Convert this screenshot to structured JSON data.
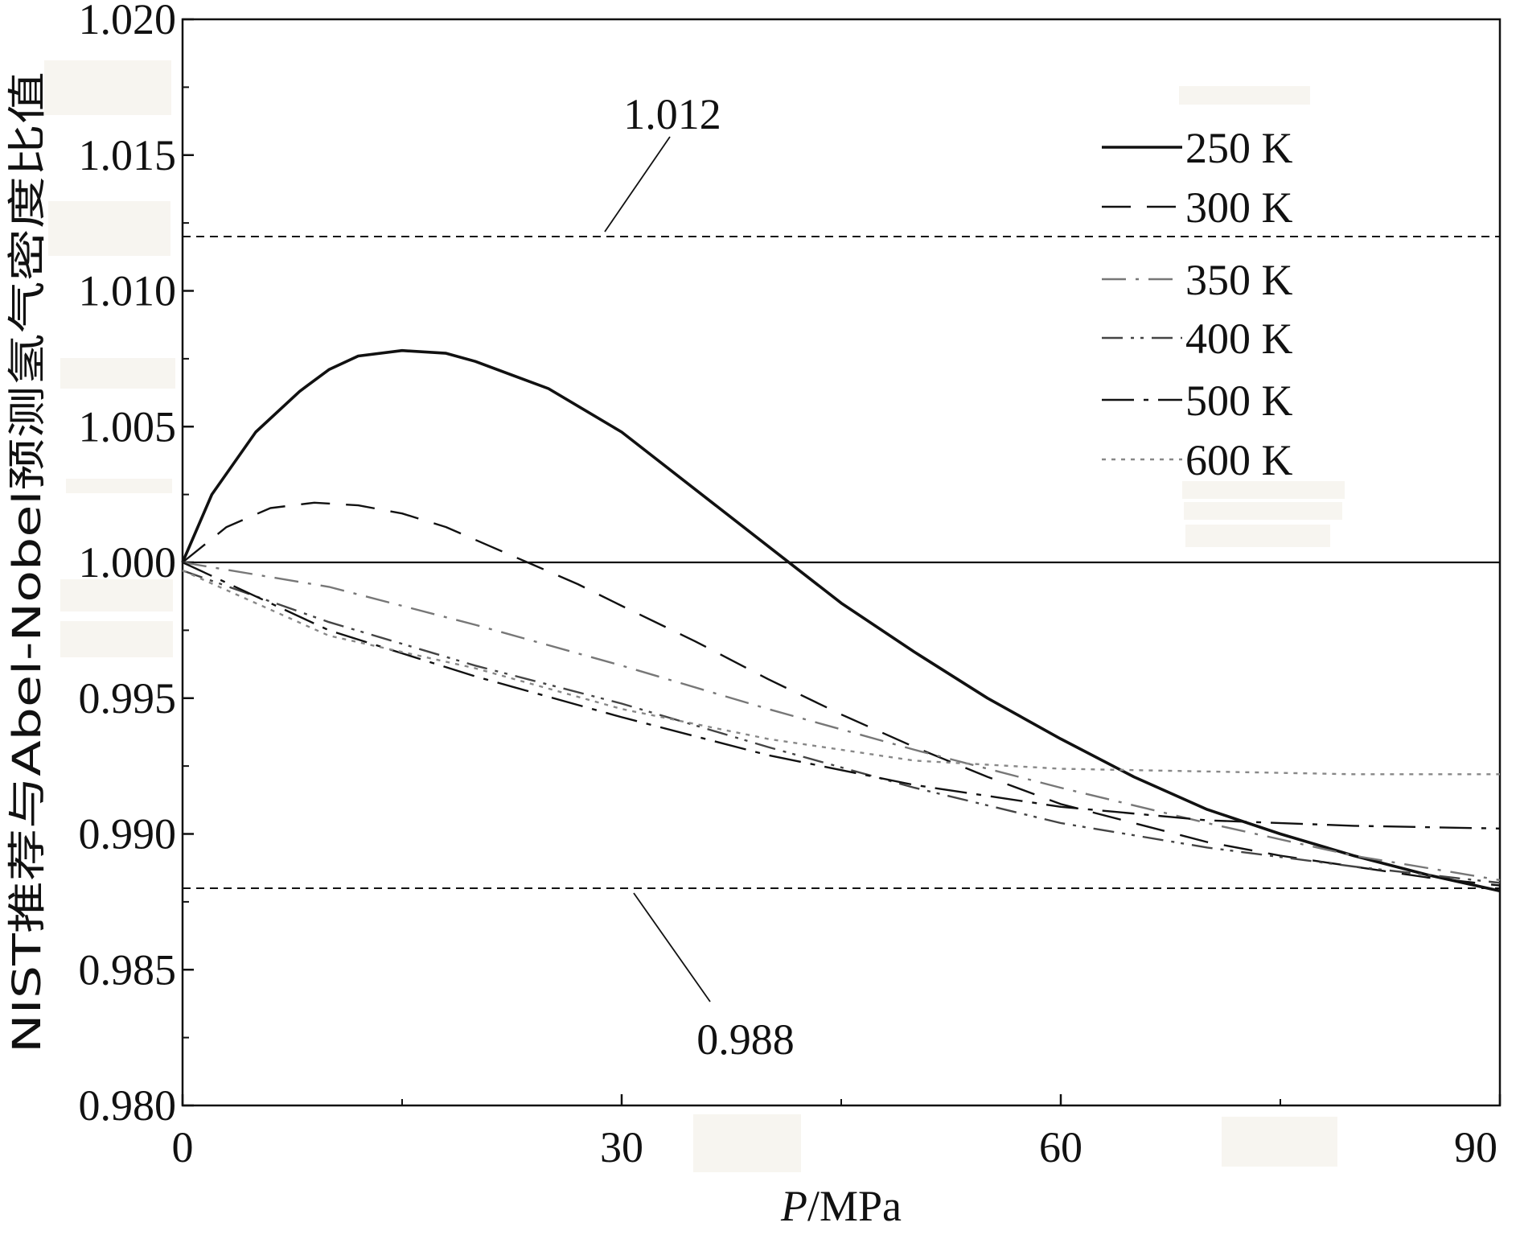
{
  "chart_data": {
    "type": "line",
    "title": "",
    "xlabel_italic": "P",
    "xlabel_unit": "/MPa",
    "ylabel": "NIST推荐与Abel-Nobel预测氢气密度比值",
    "xlim": [
      0,
      90
    ],
    "ylim": [
      0.98,
      1.02
    ],
    "x_ticks": [
      0,
      30,
      60,
      90
    ],
    "x_tick_labels": [
      "0",
      "30",
      "60",
      "90"
    ],
    "y_ticks": [
      0.98,
      0.985,
      0.99,
      0.995,
      1.0,
      1.005,
      1.01,
      1.015,
      1.02
    ],
    "y_tick_labels": [
      "0.980",
      "0.985",
      "0.990",
      "0.995",
      "1.000",
      "1.005",
      "1.010",
      "1.015",
      "1.020"
    ],
    "grid": false,
    "legend_position": "top-right",
    "reference_lines": [
      {
        "y": 1.012,
        "label": "1.012",
        "style": "dashed"
      },
      {
        "y": 1.0,
        "label": "",
        "style": "solid"
      },
      {
        "y": 0.988,
        "label": "0.988",
        "style": "dashed"
      }
    ],
    "series": [
      {
        "name": "250 K",
        "color": "#111111",
        "dash": "solid",
        "x": [
          0,
          2,
          5,
          8,
          10,
          12,
          15,
          18,
          20,
          25,
          30,
          35,
          40,
          45,
          50,
          55,
          60,
          65,
          70,
          75,
          80,
          85,
          90
        ],
        "y": [
          1.0,
          1.0025,
          1.0048,
          1.0063,
          1.0071,
          1.0076,
          1.0078,
          1.0077,
          1.0074,
          1.0064,
          1.0048,
          1.0027,
          1.0006,
          0.9985,
          0.9967,
          0.995,
          0.9935,
          0.9921,
          0.9909,
          0.99,
          0.9892,
          0.9885,
          0.9879
        ]
      },
      {
        "name": "300 K",
        "color": "#111111",
        "dash": "long-dash",
        "x": [
          0,
          3,
          6,
          9,
          12,
          15,
          18,
          21,
          24,
          27,
          30,
          35,
          40,
          45,
          50,
          55,
          60,
          65,
          70,
          75,
          80,
          85,
          90
        ],
        "y": [
          1.0,
          1.0013,
          1.002,
          1.0022,
          1.0021,
          1.0018,
          1.0013,
          1.0006,
          0.9999,
          0.9992,
          0.9984,
          0.9971,
          0.9957,
          0.9944,
          0.9932,
          0.9921,
          0.9911,
          0.9904,
          0.9897,
          0.9892,
          0.9888,
          0.9884,
          0.9881
        ]
      },
      {
        "name": "350 K",
        "color": "#777777",
        "dash": "dash-dot",
        "x": [
          0,
          10,
          20,
          30,
          40,
          50,
          60,
          70,
          80,
          90
        ],
        "y": [
          1.0,
          0.9991,
          0.9977,
          0.9962,
          0.9946,
          0.9931,
          0.9917,
          0.9904,
          0.9892,
          0.9883
        ]
      },
      {
        "name": "400 K",
        "color": "#444444",
        "dash": "dash-dot-dot",
        "x": [
          0,
          10,
          20,
          30,
          40,
          50,
          60,
          70,
          80,
          90
        ],
        "y": [
          0.9997,
          0.9978,
          0.9962,
          0.9948,
          0.9932,
          0.9917,
          0.9904,
          0.9895,
          0.9888,
          0.9882
        ]
      },
      {
        "name": "500 K",
        "color": "#111111",
        "dash": "dash-dot-long",
        "x": [
          0,
          10,
          20,
          30,
          40,
          50,
          60,
          70,
          80,
          90
        ],
        "y": [
          1.0,
          0.9975,
          0.9958,
          0.9943,
          0.9929,
          0.9918,
          0.991,
          0.9905,
          0.9903,
          0.9902
        ]
      },
      {
        "name": "600 K",
        "color": "#888888",
        "dash": "dotted",
        "x": [
          0,
          10,
          20,
          30,
          40,
          50,
          60,
          70,
          80,
          90
        ],
        "y": [
          0.9997,
          0.9973,
          0.9961,
          0.9946,
          0.9935,
          0.9927,
          0.9924,
          0.9923,
          0.9922,
          0.9922
        ]
      }
    ]
  }
}
